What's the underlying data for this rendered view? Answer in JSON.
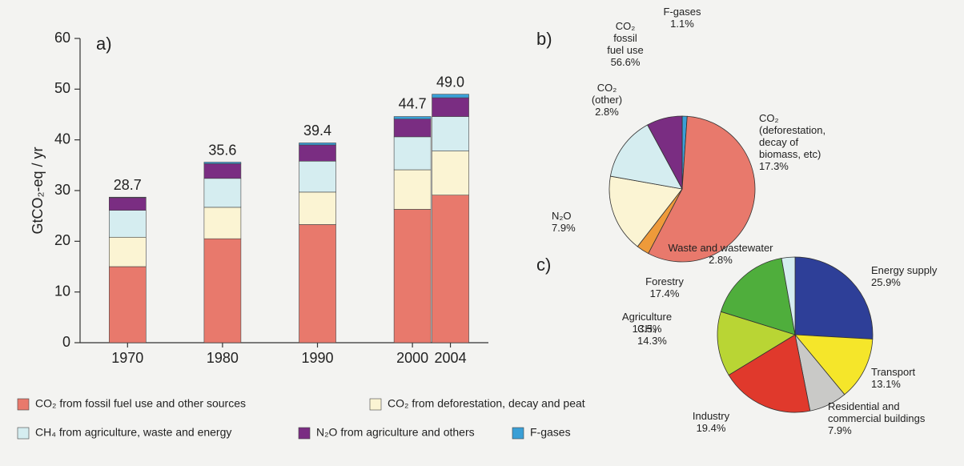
{
  "chart_data": [
    {
      "type": "bar",
      "stacked": true,
      "panel": "a)",
      "ylabel": "GtCO₂-eq / yr",
      "x": [
        1970,
        1980,
        1990,
        2000,
        2004
      ],
      "xlim": [
        1965,
        2008
      ],
      "ylim": [
        0,
        60
      ],
      "yticks": [
        0,
        10,
        20,
        30,
        40,
        50,
        60
      ],
      "totals": [
        28.7,
        35.6,
        39.4,
        44.7,
        49.0
      ],
      "total_labels": [
        "28.7",
        "35.6",
        "39.4",
        "44.7",
        "49.0"
      ],
      "series": [
        {
          "name": "CO₂ from fossil fuel use and other sources",
          "color": "#e8796c",
          "values": [
            15.0,
            20.5,
            23.3,
            26.3,
            29.1
          ]
        },
        {
          "name": "CO₂ from deforestation, decay and peat",
          "color": "#fbf4d3",
          "values": [
            5.8,
            6.2,
            6.4,
            7.8,
            8.7
          ]
        },
        {
          "name": "CH₄ from agriculture, waste and energy",
          "color": "#d5edf0",
          "values": [
            5.3,
            5.7,
            6.1,
            6.5,
            6.8
          ]
        },
        {
          "name": "N₂O from agriculture and others",
          "color": "#7a2d82",
          "values": [
            2.5,
            2.9,
            3.2,
            3.5,
            3.7
          ]
        },
        {
          "name": "F-gases",
          "color": "#3a9fd6",
          "values": [
            0.1,
            0.3,
            0.4,
            0.5,
            0.7
          ]
        }
      ]
    },
    {
      "type": "pie",
      "panel": "b)",
      "categories": [
        "F-gases",
        "CO₂ fossil fuel use",
        "CO₂ (other)",
        "CO₂ (deforestation, decay of biomass, etc)",
        "CH₄",
        "N₂O"
      ],
      "values": [
        1.1,
        56.6,
        2.8,
        17.3,
        14.3,
        7.9
      ],
      "value_labels": [
        "1.1%",
        "56.6%",
        "2.8%",
        "17.3%",
        "14.3%",
        "7.9%"
      ],
      "colors": [
        "#3a9fd6",
        "#e8796c",
        "#ee9a3a",
        "#fbf4d3",
        "#d5edf0",
        "#7a2d82"
      ]
    },
    {
      "type": "pie",
      "panel": "c)",
      "categories": [
        "Energy supply",
        "Transport",
        "Residential and commercial buildings",
        "Industry",
        "Agriculture",
        "Forestry",
        "Waste and wastewater"
      ],
      "values": [
        25.9,
        13.1,
        7.9,
        19.4,
        13.5,
        17.4,
        2.8
      ],
      "value_labels": [
        "25.9%",
        "13.1%",
        "7.9%",
        "19.4%",
        "13.5%",
        "17.4%",
        "2.8%"
      ],
      "colors": [
        "#2e3f98",
        "#f5e62a",
        "#c9c9c7",
        "#e0392c",
        "#b9d534",
        "#4fae3c",
        "#d5edf0"
      ]
    }
  ]
}
